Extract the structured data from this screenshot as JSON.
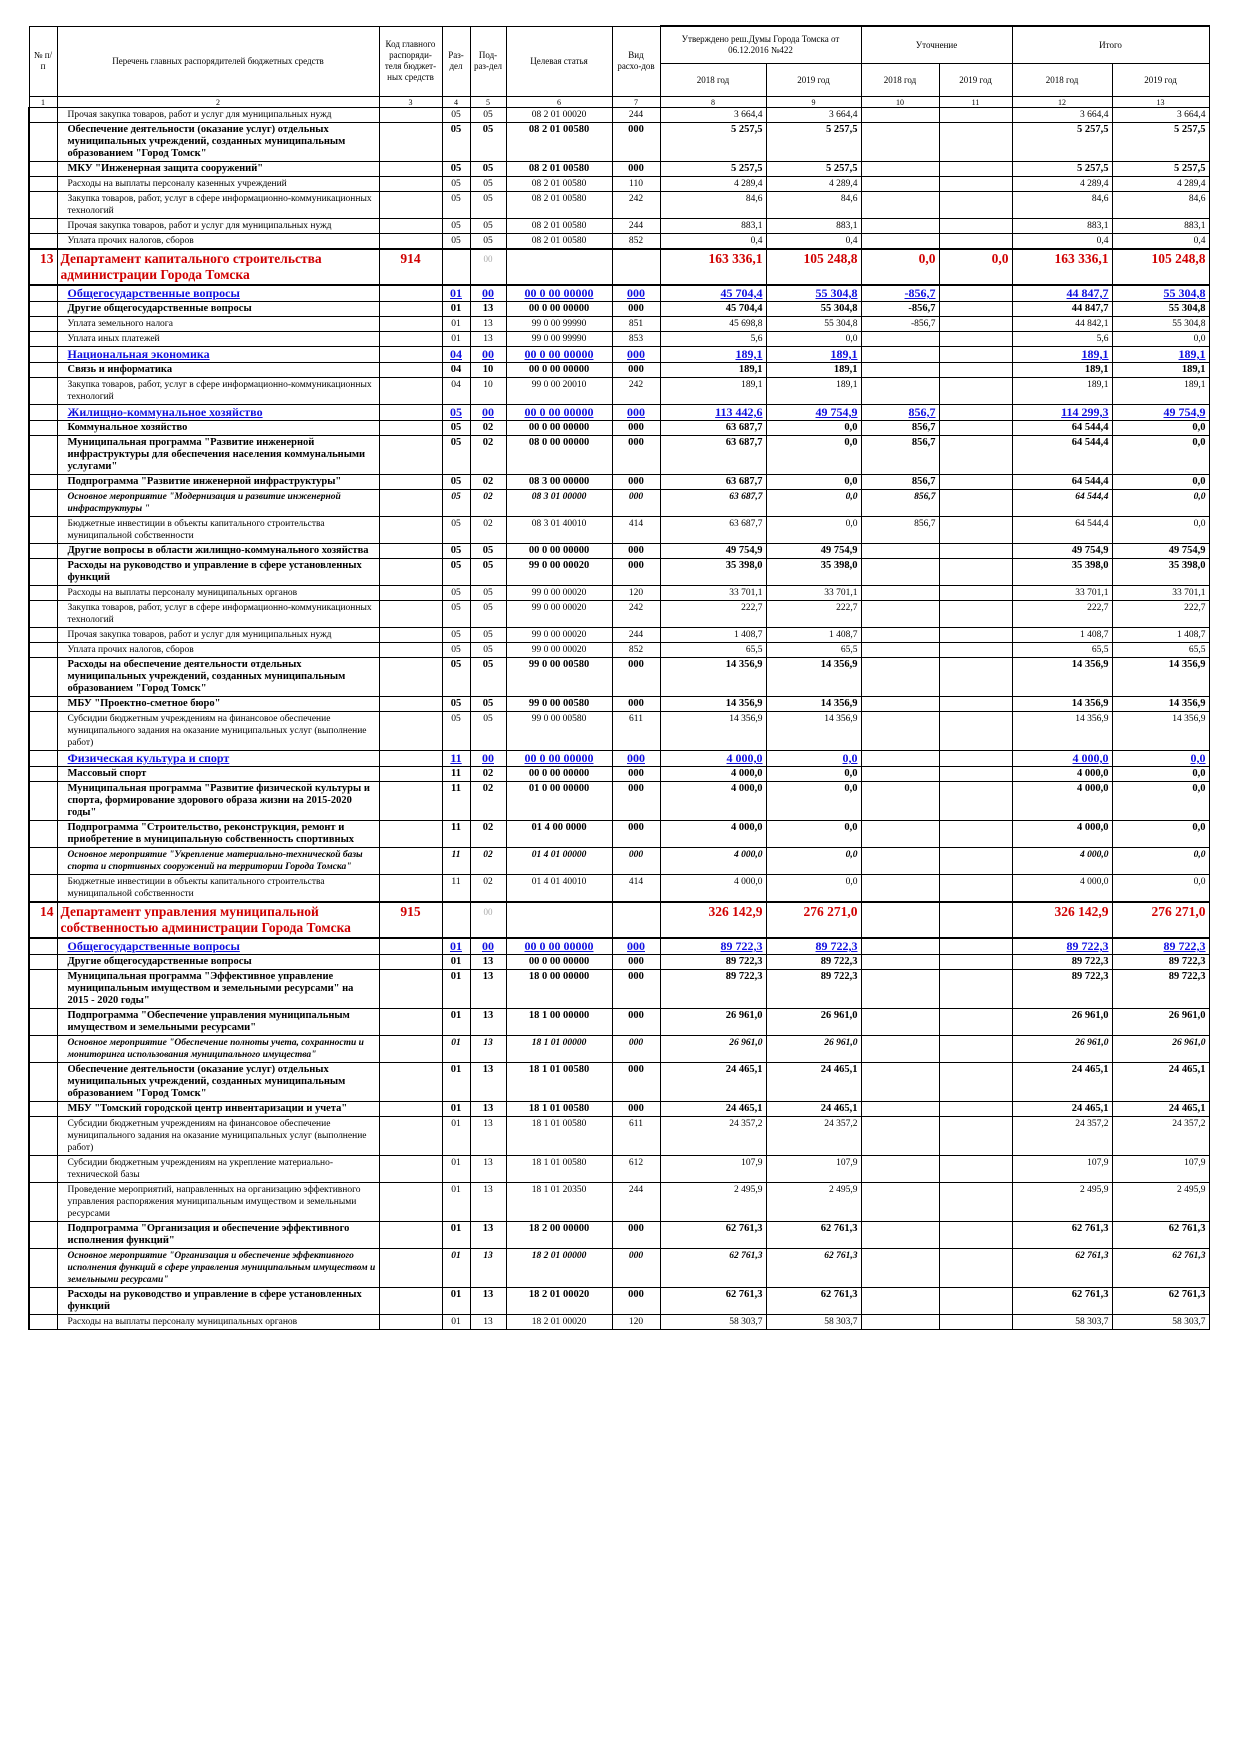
{
  "header": {
    "columns": [
      "№ п/п",
      "Перечень главных распорядителей бюджетных средств",
      "Код главного распоряди-теля бюджет-ных средств",
      "Раз-дел",
      "Под-раз-дел",
      "Целевая статья",
      "Вид расхо-дов"
    ],
    "groups": [
      "Утверждено реш.Думы Города Томска от 06.12.2016 №422",
      "Уточнение",
      "Итого"
    ],
    "years": [
      "2018 год",
      "2019 год"
    ],
    "numbers": [
      "1",
      "2",
      "3",
      "4",
      "5",
      "6",
      "7",
      "8",
      "9",
      "10",
      "11",
      "12",
      "13"
    ]
  },
  "table": {
    "rows": [
      {
        "style": "plain",
        "cells": [
          null,
          "Прочая закупка товаров, работ и услуг для муниципальных нужд",
          null,
          "05",
          "05",
          "08 2 01 00020",
          "244",
          "3 664,4",
          "3 664,4",
          null,
          null,
          "3 664,4",
          "3 664,4"
        ]
      },
      {
        "style": "bold",
        "cells": [
          null,
          "Обеспечение деятельности (оказание услуг) отдельных муниципальных учреждений, созданных муниципальным образованием \"Город Томск\"",
          null,
          "05",
          "05",
          "08 2 01 00580",
          "000",
          "5 257,5",
          "5 257,5",
          null,
          null,
          "5 257,5",
          "5 257,5"
        ]
      },
      {
        "style": "bold",
        "cells": [
          null,
          "МКУ \"Инженерная защита сооружений\"",
          null,
          "05",
          "05",
          "08 2 01 00580",
          "000",
          "5 257,5",
          "5 257,5",
          null,
          null,
          "5 257,5",
          "5 257,5"
        ]
      },
      {
        "style": "plain",
        "cells": [
          null,
          "Расходы на выплаты персоналу казенных учреждений",
          null,
          "05",
          "05",
          "08 2 01 00580",
          "110",
          "4 289,4",
          "4 289,4",
          null,
          null,
          "4 289,4",
          "4 289,4"
        ]
      },
      {
        "style": "plain",
        "cells": [
          null,
          "Закупка товаров, работ, услуг в сфере информационно-коммуникационных технологий",
          null,
          "05",
          "05",
          "08 2 01 00580",
          "242",
          "84,6",
          "84,6",
          null,
          null,
          "84,6",
          "84,6"
        ]
      },
      {
        "style": "plain",
        "cells": [
          null,
          "Прочая закупка товаров, работ и услуг для муниципальных нужд",
          null,
          "05",
          "05",
          "08 2 01 00580",
          "244",
          "883,1",
          "883,1",
          null,
          null,
          "883,1",
          "883,1"
        ]
      },
      {
        "style": "plain",
        "cells": [
          null,
          "Уплата прочих налогов, сборов",
          null,
          "05",
          "05",
          "08 2 01 00580",
          "852",
          "0,4",
          "0,4",
          null,
          null,
          "0,4",
          "0,4"
        ]
      },
      {
        "style": "dept",
        "cells": [
          "13",
          "Департамент капитального строительства администрации Города Томска",
          "914",
          null,
          "00",
          null,
          null,
          "163 336,1",
          "105 248,8",
          "0,0",
          "0,0",
          "163 336,1",
          "105 248,8"
        ]
      },
      {
        "style": "section",
        "cells": [
          null,
          "Общегосударственные вопросы",
          null,
          "01",
          "00",
          "00 0 00 00000",
          "000",
          "45 704,4",
          "55 304,8",
          "-856,7",
          null,
          "44 847,7",
          "55 304,8"
        ]
      },
      {
        "style": "bold",
        "cells": [
          null,
          "Другие общегосударственные вопросы",
          null,
          "01",
          "13",
          "00 0 00 00000",
          "000",
          "45 704,4",
          "55 304,8",
          "-856,7",
          null,
          "44 847,7",
          "55 304,8"
        ]
      },
      {
        "style": "plain",
        "cells": [
          null,
          "Уплата земельного налога",
          null,
          "01",
          "13",
          "99 0 00 99990",
          "851",
          "45 698,8",
          "55 304,8",
          "-856,7",
          null,
          "44 842,1",
          "55 304,8"
        ]
      },
      {
        "style": "plain",
        "cells": [
          null,
          "Уплата иных платежей",
          null,
          "01",
          "13",
          "99 0 00 99990",
          "853",
          "5,6",
          "0,0",
          null,
          null,
          "5,6",
          "0,0"
        ]
      },
      {
        "style": "section",
        "cells": [
          null,
          "Национальная экономика",
          null,
          "04",
          "00",
          "00 0 00 00000",
          "000",
          "189,1",
          "189,1",
          null,
          null,
          "189,1",
          "189,1"
        ]
      },
      {
        "style": "bold",
        "cells": [
          null,
          "Связь и информатика",
          null,
          "04",
          "10",
          "00 0 00 00000",
          "000",
          "189,1",
          "189,1",
          null,
          null,
          "189,1",
          "189,1"
        ]
      },
      {
        "style": "plain",
        "cells": [
          null,
          "Закупка товаров, работ, услуг в сфере информационно-коммуникационных технологий",
          null,
          "04",
          "10",
          "99 0 00 20010",
          "242",
          "189,1",
          "189,1",
          null,
          null,
          "189,1",
          "189,1"
        ]
      },
      {
        "style": "section",
        "cells": [
          null,
          "Жилищно-коммунальное хозяйство",
          null,
          "05",
          "00",
          "00 0 00 00000",
          "000",
          "113 442,6",
          "49 754,9",
          "856,7",
          null,
          "114 299,3",
          "49 754,9"
        ]
      },
      {
        "style": "bold",
        "cells": [
          null,
          "Коммунальное хозяйство",
          null,
          "05",
          "02",
          "00 0 00 00000",
          "000",
          "63 687,7",
          "0,0",
          "856,7",
          null,
          "64 544,4",
          "0,0"
        ]
      },
      {
        "style": "bold",
        "cells": [
          null,
          "Муниципальная программа \"Развитие инженерной инфраструктуры для обеспечения населения коммунальными услугами\"",
          null,
          "05",
          "02",
          "08 0 00 00000",
          "000",
          "63 687,7",
          "0,0",
          "856,7",
          null,
          "64 544,4",
          "0,0"
        ]
      },
      {
        "style": "bold",
        "cells": [
          null,
          "Подпрограмма \"Развитие инженерной инфраструктуры\"",
          null,
          "05",
          "02",
          "08 3 00 00000",
          "000",
          "63 687,7",
          "0,0",
          "856,7",
          null,
          "64 544,4",
          "0,0"
        ]
      },
      {
        "style": "italic",
        "cells": [
          null,
          "Основное мероприятие \"Модернизация и развитие инженерной инфраструктуры \"",
          null,
          "05",
          "02",
          "08 3 01 00000",
          "000",
          "63 687,7",
          "0,0",
          "856,7",
          null,
          "64 544,4",
          "0,0"
        ]
      },
      {
        "style": "plain",
        "cells": [
          null,
          "Бюджетные инвестиции в объекты капитального строительства муниципальной собственности",
          null,
          "05",
          "02",
          "08 3 01 40010",
          "414",
          "63 687,7",
          "0,0",
          "856,7",
          null,
          "64 544,4",
          "0,0"
        ]
      },
      {
        "style": "bold",
        "cells": [
          null,
          "Другие вопросы в области жилищно-коммунального хозяйства",
          null,
          "05",
          "05",
          "00 0 00 00000",
          "000",
          "49 754,9",
          "49 754,9",
          null,
          null,
          "49 754,9",
          "49 754,9"
        ]
      },
      {
        "style": "bold",
        "cells": [
          null,
          "Расходы на руководство и управление в сфере установленных функций",
          null,
          "05",
          "05",
          "99 0 00 00020",
          "000",
          "35 398,0",
          "35 398,0",
          null,
          null,
          "35 398,0",
          "35 398,0"
        ]
      },
      {
        "style": "plain",
        "cells": [
          null,
          "Расходы на выплаты персоналу муниципальных органов",
          null,
          "05",
          "05",
          "99 0 00 00020",
          "120",
          "33 701,1",
          "33 701,1",
          null,
          null,
          "33 701,1",
          "33 701,1"
        ]
      },
      {
        "style": "plain",
        "cells": [
          null,
          "Закупка товаров, работ, услуг в сфере информационно-коммуникационных технологий",
          null,
          "05",
          "05",
          "99 0 00 00020",
          "242",
          "222,7",
          "222,7",
          null,
          null,
          "222,7",
          "222,7"
        ]
      },
      {
        "style": "plain",
        "cells": [
          null,
          "Прочая закупка товаров, работ и услуг для муниципальных нужд",
          null,
          "05",
          "05",
          "99 0 00 00020",
          "244",
          "1 408,7",
          "1 408,7",
          null,
          null,
          "1 408,7",
          "1 408,7"
        ]
      },
      {
        "style": "plain",
        "cells": [
          null,
          "Уплата прочих налогов, сборов",
          null,
          "05",
          "05",
          "99 0 00 00020",
          "852",
          "65,5",
          "65,5",
          null,
          null,
          "65,5",
          "65,5"
        ]
      },
      {
        "style": "bold",
        "cells": [
          null,
          "Расходы на обеспечение деятельности отдельных муниципальных учреждений, созданных муниципальным образованием \"Город Томск\"",
          null,
          "05",
          "05",
          "99 0 00 00580",
          "000",
          "14 356,9",
          "14 356,9",
          null,
          null,
          "14 356,9",
          "14 356,9"
        ]
      },
      {
        "style": "bold",
        "cells": [
          null,
          "МБУ \"Проектно-сметное бюро\"",
          null,
          "05",
          "05",
          "99 0 00 00580",
          "000",
          "14 356,9",
          "14 356,9",
          null,
          null,
          "14 356,9",
          "14 356,9"
        ]
      },
      {
        "style": "plain",
        "cells": [
          null,
          "Субсидии бюджетным учреждениям на финансовое обеспечение муниципального задания на оказание муниципальных услуг (выполнение работ)",
          null,
          "05",
          "05",
          "99 0 00 00580",
          "611",
          "14 356,9",
          "14 356,9",
          null,
          null,
          "14 356,9",
          "14 356,9"
        ]
      },
      {
        "style": "section",
        "cells": [
          null,
          "Физическая культура и спорт",
          null,
          "11",
          "00",
          "00 0 00 00000",
          "000",
          "4 000,0",
          "0,0",
          null,
          null,
          "4 000,0",
          "0,0"
        ]
      },
      {
        "style": "bold",
        "cells": [
          null,
          "Массовый спорт",
          null,
          "11",
          "02",
          "00 0 00 00000",
          "000",
          "4 000,0",
          "0,0",
          null,
          null,
          "4 000,0",
          "0,0"
        ]
      },
      {
        "style": "bold",
        "cells": [
          null,
          "Муниципальная программа \"Развитие физической культуры и спорта, формирование здорового образа жизни на 2015-2020 годы\"",
          null,
          "11",
          "02",
          "01 0 00 00000",
          "000",
          "4 000,0",
          "0,0",
          null,
          null,
          "4 000,0",
          "0,0"
        ]
      },
      {
        "style": "bold",
        "cells": [
          null,
          "Подпрограмма \"Строительство, реконструкция, ремонт и приобретение в муниципальную собственность спортивных",
          null,
          "11",
          "02",
          "01 4 00 0000",
          "000",
          "4 000,0",
          "0,0",
          null,
          null,
          "4 000,0",
          "0,0"
        ]
      },
      {
        "style": "italic",
        "cells": [
          null,
          "Основное мероприятие \"Укрепление материально-технической базы спорта и спортивных сооружений на территории Города Томска\"",
          null,
          "11",
          "02",
          "01 4 01 00000",
          "000",
          "4 000,0",
          "0,0",
          null,
          null,
          "4 000,0",
          "0,0"
        ]
      },
      {
        "style": "plain",
        "cells": [
          null,
          "Бюджетные инвестиции в объекты капитального строительства муниципальной собственности",
          null,
          "11",
          "02",
          "01 4 01 40010",
          "414",
          "4 000,0",
          "0,0",
          null,
          null,
          "4 000,0",
          "0,0"
        ]
      },
      {
        "style": "dept",
        "cells": [
          "14",
          "Департамент управления муниципальной собственностью администрации Города Томска",
          "915",
          null,
          "00",
          null,
          null,
          "326 142,9",
          "276 271,0",
          null,
          null,
          "326 142,9",
          "276 271,0"
        ]
      },
      {
        "style": "section",
        "cells": [
          null,
          "Общегосударственные вопросы",
          null,
          "01",
          "00",
          "00 0 00 00000",
          "000",
          "89 722,3",
          "89 722,3",
          null,
          null,
          "89 722,3",
          "89 722,3"
        ]
      },
      {
        "style": "bold",
        "cells": [
          null,
          "Другие общегосударственные вопросы",
          null,
          "01",
          "13",
          "00 0 00 00000",
          "000",
          "89 722,3",
          "89 722,3",
          null,
          null,
          "89 722,3",
          "89 722,3"
        ]
      },
      {
        "style": "bold",
        "cells": [
          null,
          "Муниципальная программа \"Эффективное управление муниципальным имуществом и земельными ресурсами\" на 2015 - 2020 годы\"",
          null,
          "01",
          "13",
          "18 0 00 00000",
          "000",
          "89 722,3",
          "89 722,3",
          null,
          null,
          "89 722,3",
          "89 722,3"
        ]
      },
      {
        "style": "bold",
        "cells": [
          null,
          "Подпрограмма \"Обеспечение управления муниципальным имуществом и земельными ресурсами\"",
          null,
          "01",
          "13",
          "18 1 00 00000",
          "000",
          "26 961,0",
          "26 961,0",
          null,
          null,
          "26 961,0",
          "26 961,0"
        ]
      },
      {
        "style": "italic",
        "cells": [
          null,
          "Основное мероприятие \"Обеспечение полноты учета, сохранности и мониторинга использования муниципального имущества\"",
          null,
          "01",
          "13",
          "18 1 01 00000",
          "000",
          "26 961,0",
          "26 961,0",
          null,
          null,
          "26 961,0",
          "26 961,0"
        ]
      },
      {
        "style": "bold",
        "cells": [
          null,
          "Обеспечение деятельности (оказание услуг) отдельных муниципальных учреждений, созданных муниципальным образованием \"Город Томск\"",
          null,
          "01",
          "13",
          "18 1 01 00580",
          "000",
          "24 465,1",
          "24 465,1",
          null,
          null,
          "24 465,1",
          "24 465,1"
        ]
      },
      {
        "style": "bold",
        "cells": [
          null,
          "МБУ \"Томский городской центр инвентаризации и учета\"",
          null,
          "01",
          "13",
          "18 1 01 00580",
          "000",
          "24 465,1",
          "24 465,1",
          null,
          null,
          "24 465,1",
          "24 465,1"
        ]
      },
      {
        "style": "plain",
        "cells": [
          null,
          "Субсидии бюджетным учреждениям на финансовое обеспечение муниципального задания на оказание муниципальных услуг (выполнение работ)",
          null,
          "01",
          "13",
          "18 1 01 00580",
          "611",
          "24 357,2",
          "24 357,2",
          null,
          null,
          "24 357,2",
          "24 357,2"
        ]
      },
      {
        "style": "plain",
        "cells": [
          null,
          "Субсидии бюджетным учреждениям на укрепление материально-технической базы",
          null,
          "01",
          "13",
          "18 1 01 00580",
          "612",
          "107,9",
          "107,9",
          null,
          null,
          "107,9",
          "107,9"
        ]
      },
      {
        "style": "plain",
        "cells": [
          null,
          "Проведение мероприятий, направленных на организацию эффективного управления распоряжения муниципальным имуществом и земельными ресурсами",
          null,
          "01",
          "13",
          "18 1 01 20350",
          "244",
          "2 495,9",
          "2 495,9",
          null,
          null,
          "2 495,9",
          "2 495,9"
        ]
      },
      {
        "style": "bold",
        "cells": [
          null,
          "Подпрограмма \"Организация и обеспечение эффективного исполнения функций\"",
          null,
          "01",
          "13",
          "18 2 00 00000",
          "000",
          "62 761,3",
          "62 761,3",
          null,
          null,
          "62 761,3",
          "62 761,3"
        ]
      },
      {
        "style": "italic",
        "cells": [
          null,
          "Основное мероприятие \"Организация и обеспечение эффективного исполнения функций в сфере управления муниципальным имуществом и земельными ресурсами\"",
          null,
          "01",
          "13",
          "18 2 01 00000",
          "000",
          "62 761,3",
          "62 761,3",
          null,
          null,
          "62 761,3",
          "62 761,3"
        ]
      },
      {
        "style": "bold",
        "cells": [
          null,
          "Расходы на руководство и управление в сфере установленных функций",
          null,
          "01",
          "13",
          "18 2 01 00020",
          "000",
          "62 761,3",
          "62 761,3",
          null,
          null,
          "62 761,3",
          "62 761,3"
        ]
      },
      {
        "style": "plain",
        "cells": [
          null,
          "Расходы на выплаты персоналу муниципальных органов",
          null,
          "01",
          "13",
          "18 2 01 00020",
          "120",
          "58 303,7",
          "58 303,7",
          null,
          null,
          "58 303,7",
          "58 303,7"
        ]
      }
    ]
  }
}
